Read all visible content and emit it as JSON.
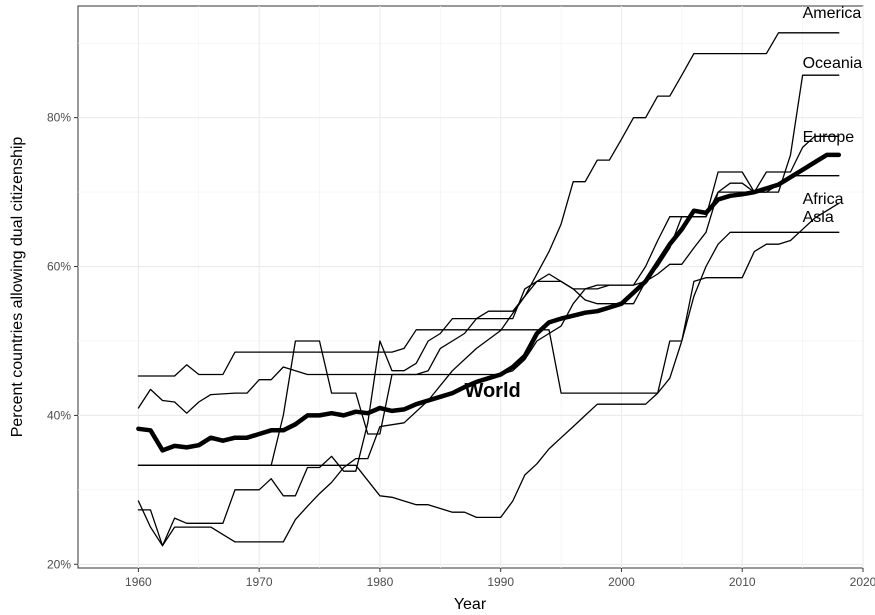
{
  "chart_data": {
    "type": "line",
    "title": "",
    "xlabel": "Year",
    "ylabel": "Percent countries allowing dual citizenship",
    "xlim": [
      1955,
      2020
    ],
    "ylim": [
      19.5,
      95
    ],
    "x_ticks": [
      1960,
      1970,
      1980,
      1990,
      2000,
      2010,
      2020
    ],
    "x_tick_labels": [
      "1960",
      "1970",
      "1980",
      "1990",
      "2000",
      "2010",
      "2020"
    ],
    "y_ticks": [
      20,
      40,
      60,
      80
    ],
    "y_tick_labels": [
      "20%",
      "40%",
      "60%",
      "80%"
    ],
    "grid": true,
    "legend": "none (direct labels)",
    "series": [
      {
        "name": "America",
        "style": "thin",
        "points": [
          [
            1960,
            28.5
          ],
          [
            1961,
            25.0
          ],
          [
            1962,
            22.5
          ],
          [
            1963,
            25.0
          ],
          [
            1966,
            25.0
          ],
          [
            1968,
            23.0
          ],
          [
            1972,
            23.0
          ],
          [
            1973,
            26.0
          ],
          [
            1974,
            27.8
          ],
          [
            1975,
            29.5
          ],
          [
            1976,
            31.0
          ],
          [
            1977,
            33.0
          ],
          [
            1978,
            34.2
          ],
          [
            1979,
            34.2
          ],
          [
            1980,
            38.5
          ],
          [
            1982,
            39.0
          ],
          [
            1984,
            42.0
          ],
          [
            1986,
            46.0
          ],
          [
            1988,
            49.0
          ],
          [
            1990,
            51.4
          ],
          [
            1992,
            56.0
          ],
          [
            1994,
            62.0
          ],
          [
            1995,
            65.7
          ],
          [
            1996,
            71.4
          ],
          [
            1997,
            71.4
          ],
          [
            1998,
            74.3
          ],
          [
            1999,
            74.3
          ],
          [
            2000,
            77.1
          ],
          [
            2001,
            80.0
          ],
          [
            2002,
            80.0
          ],
          [
            2003,
            82.9
          ],
          [
            2004,
            82.9
          ],
          [
            2005,
            85.7
          ],
          [
            2006,
            88.6
          ],
          [
            2012,
            88.6
          ],
          [
            2013,
            91.4
          ],
          [
            2018,
            91.4
          ]
        ]
      },
      {
        "name": "Oceania",
        "style": "thin",
        "points": [
          [
            1960,
            27.3
          ],
          [
            1961,
            27.3
          ],
          [
            1962,
            22.5
          ],
          [
            1963,
            26.2
          ],
          [
            1964,
            25.5
          ],
          [
            1966,
            25.5
          ],
          [
            1967,
            25.5
          ],
          [
            1968,
            30.0
          ],
          [
            1970,
            30.0
          ],
          [
            1971,
            31.5
          ],
          [
            1972,
            29.2
          ],
          [
            1973,
            29.2
          ],
          [
            1974,
            33.0
          ],
          [
            1975,
            33.0
          ],
          [
            1976,
            34.5
          ],
          [
            1977,
            32.5
          ],
          [
            1978,
            32.5
          ],
          [
            1979,
            39.0
          ],
          [
            1980,
            50.0
          ],
          [
            1981,
            46.0
          ],
          [
            1982,
            46.0
          ],
          [
            1983,
            47.0
          ],
          [
            1984,
            50.0
          ],
          [
            1985,
            51.0
          ],
          [
            1986,
            53.0
          ],
          [
            1987,
            53.0
          ],
          [
            1988,
            53.0
          ],
          [
            1989,
            53.0
          ],
          [
            1990,
            53.0
          ],
          [
            1991,
            53.0
          ],
          [
            1992,
            57.0
          ],
          [
            1993,
            58.0
          ],
          [
            1994,
            59.0
          ],
          [
            1995,
            58.0
          ],
          [
            1996,
            57.0
          ],
          [
            1997,
            57.0
          ],
          [
            1998,
            57.0
          ],
          [
            1999,
            57.5
          ],
          [
            2000,
            57.5
          ],
          [
            2001,
            57.5
          ],
          [
            2002,
            60.0
          ],
          [
            2003,
            63.5
          ],
          [
            2004,
            66.7
          ],
          [
            2005,
            66.7
          ],
          [
            2006,
            66.7
          ],
          [
            2007,
            66.7
          ],
          [
            2008,
            70.0
          ],
          [
            2013,
            70.0
          ],
          [
            2014,
            75.0
          ],
          [
            2015,
            85.7
          ],
          [
            2018,
            85.7
          ]
        ]
      },
      {
        "name": "Europe",
        "style": "thin",
        "points": [
          [
            1960,
            33.3
          ],
          [
            1970,
            33.3
          ],
          [
            1971,
            33.3
          ],
          [
            1972,
            40.0
          ],
          [
            1973,
            50.0
          ],
          [
            1975,
            50.0
          ],
          [
            1976,
            43.0
          ],
          [
            1978,
            43.0
          ],
          [
            1979,
            37.5
          ],
          [
            1980,
            37.5
          ],
          [
            1981,
            45.5
          ],
          [
            1983,
            45.5
          ],
          [
            1984,
            46.0
          ],
          [
            1985,
            49.0
          ],
          [
            1986,
            50.0
          ],
          [
            1987,
            51.0
          ],
          [
            1988,
            53.0
          ],
          [
            1989,
            54.0
          ],
          [
            1990,
            54.0
          ],
          [
            1991,
            54.0
          ],
          [
            1992,
            56.0
          ],
          [
            1993,
            58.0
          ],
          [
            1994,
            58.0
          ],
          [
            1995,
            58.0
          ],
          [
            1996,
            57.0
          ],
          [
            1997,
            55.5
          ],
          [
            1998,
            55.0
          ],
          [
            1999,
            55.0
          ],
          [
            2000,
            55.0
          ],
          [
            2001,
            55.0
          ],
          [
            2002,
            58.0
          ],
          [
            2003,
            60.0
          ],
          [
            2004,
            62.5
          ],
          [
            2005,
            66.7
          ],
          [
            2006,
            66.7
          ],
          [
            2007,
            66.7
          ],
          [
            2008,
            72.7
          ],
          [
            2010,
            72.7
          ],
          [
            2011,
            70.0
          ],
          [
            2012,
            72.7
          ],
          [
            2014,
            72.7
          ],
          [
            2015,
            76.0
          ],
          [
            2016,
            77.5
          ],
          [
            2018,
            77.5
          ]
        ]
      },
      {
        "name": "Africa",
        "style": "thin",
        "points": [
          [
            1960,
            41.0
          ],
          [
            1961,
            43.5
          ],
          [
            1962,
            42.0
          ],
          [
            1963,
            41.8
          ],
          [
            1964,
            40.3
          ],
          [
            1965,
            41.8
          ],
          [
            1966,
            42.8
          ],
          [
            1968,
            43.0
          ],
          [
            1969,
            43.0
          ],
          [
            1970,
            44.8
          ],
          [
            1971,
            44.8
          ],
          [
            1972,
            46.5
          ],
          [
            1973,
            46.0
          ],
          [
            1974,
            45.5
          ],
          [
            1990,
            45.5
          ],
          [
            1991,
            46.0
          ],
          [
            1992,
            47.5
          ],
          [
            1993,
            50.0
          ],
          [
            1994,
            51.0
          ],
          [
            1995,
            52.0
          ],
          [
            1996,
            55.0
          ],
          [
            1997,
            57.0
          ],
          [
            1998,
            57.5
          ],
          [
            1999,
            57.5
          ],
          [
            2000,
            57.5
          ],
          [
            2001,
            57.5
          ],
          [
            2002,
            58.0
          ],
          [
            2003,
            59.0
          ],
          [
            2004,
            60.3
          ],
          [
            2005,
            60.3
          ],
          [
            2006,
            62.5
          ],
          [
            2007,
            64.6
          ],
          [
            2008,
            70.0
          ],
          [
            2009,
            71.2
          ],
          [
            2010,
            71.2
          ],
          [
            2011,
            70.0
          ],
          [
            2012,
            70.0
          ],
          [
            2013,
            71.0
          ],
          [
            2014,
            72.2
          ],
          [
            2015,
            72.2
          ],
          [
            2016,
            72.2
          ],
          [
            2017,
            72.2
          ],
          [
            2018,
            72.2
          ]
        ]
      },
      {
        "name": "Asia",
        "style": "thin",
        "points": [
          [
            1960,
            45.3
          ],
          [
            1963,
            45.3
          ],
          [
            1964,
            46.8
          ],
          [
            1965,
            45.5
          ],
          [
            1967,
            45.5
          ],
          [
            1968,
            48.5
          ],
          [
            1981,
            48.5
          ],
          [
            1982,
            49.0
          ],
          [
            1983,
            51.5
          ],
          [
            1994,
            51.5
          ],
          [
            1995,
            43.0
          ],
          [
            1998,
            43.0
          ],
          [
            1999,
            43.0
          ],
          [
            2003,
            43.0
          ],
          [
            2004,
            50.0
          ],
          [
            2005,
            50.0
          ],
          [
            2006,
            58.0
          ],
          [
            2007,
            58.5
          ],
          [
            2008,
            58.5
          ],
          [
            2009,
            58.5
          ],
          [
            2010,
            58.5
          ],
          [
            2011,
            62.0
          ],
          [
            2012,
            63.0
          ],
          [
            2013,
            63.0
          ],
          [
            2014,
            63.5
          ],
          [
            2015,
            65.0
          ],
          [
            2016,
            66.5
          ],
          [
            2017,
            67.5
          ],
          [
            2018,
            68.5
          ]
        ]
      },
      {
        "name": "unlabeled",
        "style": "thin",
        "points": [
          [
            1960,
            33.3
          ],
          [
            1978,
            33.3
          ],
          [
            1980,
            29.2
          ],
          [
            1981,
            29.0
          ],
          [
            1982,
            28.5
          ],
          [
            1983,
            28.0
          ],
          [
            1984,
            28.0
          ],
          [
            1985,
            27.5
          ],
          [
            1986,
            27.0
          ],
          [
            1987,
            27.0
          ],
          [
            1988,
            26.3
          ],
          [
            1990,
            26.3
          ],
          [
            1991,
            28.5
          ],
          [
            1992,
            32.0
          ],
          [
            1993,
            33.5
          ],
          [
            1994,
            35.5
          ],
          [
            1995,
            37.0
          ],
          [
            1996,
            38.5
          ],
          [
            1997,
            40.0
          ],
          [
            1998,
            41.5
          ],
          [
            2002,
            41.5
          ],
          [
            2003,
            43.0
          ],
          [
            2004,
            45.0
          ],
          [
            2005,
            50.0
          ],
          [
            2006,
            56.0
          ],
          [
            2007,
            60.0
          ],
          [
            2008,
            63.0
          ],
          [
            2009,
            64.6
          ],
          [
            2018,
            64.6
          ]
        ]
      },
      {
        "name": "World",
        "style": "thick",
        "points": [
          [
            1960,
            38.2
          ],
          [
            1961,
            38.0
          ],
          [
            1962,
            35.3
          ],
          [
            1963,
            35.9
          ],
          [
            1964,
            35.7
          ],
          [
            1965,
            36.0
          ],
          [
            1966,
            37.0
          ],
          [
            1967,
            36.6
          ],
          [
            1968,
            37.0
          ],
          [
            1969,
            37.0
          ],
          [
            1970,
            37.5
          ],
          [
            1971,
            38.0
          ],
          [
            1972,
            38.0
          ],
          [
            1973,
            38.8
          ],
          [
            1974,
            40.0
          ],
          [
            1975,
            40.0
          ],
          [
            1976,
            40.3
          ],
          [
            1977,
            40.0
          ],
          [
            1978,
            40.5
          ],
          [
            1979,
            40.3
          ],
          [
            1980,
            41.0
          ],
          [
            1981,
            40.6
          ],
          [
            1982,
            40.8
          ],
          [
            1983,
            41.5
          ],
          [
            1984,
            42.0
          ],
          [
            1985,
            42.5
          ],
          [
            1986,
            43.0
          ],
          [
            1987,
            43.8
          ],
          [
            1988,
            44.5
          ],
          [
            1989,
            45.0
          ],
          [
            1990,
            45.5
          ],
          [
            1991,
            46.5
          ],
          [
            1992,
            48.0
          ],
          [
            1993,
            51.0
          ],
          [
            1994,
            52.5
          ],
          [
            1995,
            53.0
          ],
          [
            1996,
            53.4
          ],
          [
            1997,
            53.8
          ],
          [
            1998,
            54.0
          ],
          [
            1999,
            54.5
          ],
          [
            2000,
            55.0
          ],
          [
            2001,
            56.5
          ],
          [
            2002,
            58.0
          ],
          [
            2003,
            60.5
          ],
          [
            2004,
            63.0
          ],
          [
            2005,
            65.0
          ],
          [
            2006,
            67.5
          ],
          [
            2007,
            67.2
          ],
          [
            2008,
            69.0
          ],
          [
            2009,
            69.5
          ],
          [
            2010,
            69.7
          ],
          [
            2011,
            70.0
          ],
          [
            2012,
            70.5
          ],
          [
            2013,
            71.0
          ],
          [
            2014,
            72.0
          ],
          [
            2015,
            73.0
          ],
          [
            2016,
            74.0
          ],
          [
            2017,
            75.0
          ],
          [
            2018,
            75.0
          ]
        ]
      }
    ],
    "annotations": [
      {
        "text": "America",
        "x": 2015,
        "y": 93.4
      },
      {
        "text": "Oceania",
        "x": 2015,
        "y": 86.7
      },
      {
        "text": "Europe",
        "x": 2015,
        "y": 76.7
      },
      {
        "text": "Africa",
        "x": 2015,
        "y": 68.4
      },
      {
        "text": "Asia",
        "x": 2015,
        "y": 66.0
      },
      {
        "text": "World",
        "x": 1987,
        "y": 42.5,
        "bold": true
      }
    ]
  }
}
